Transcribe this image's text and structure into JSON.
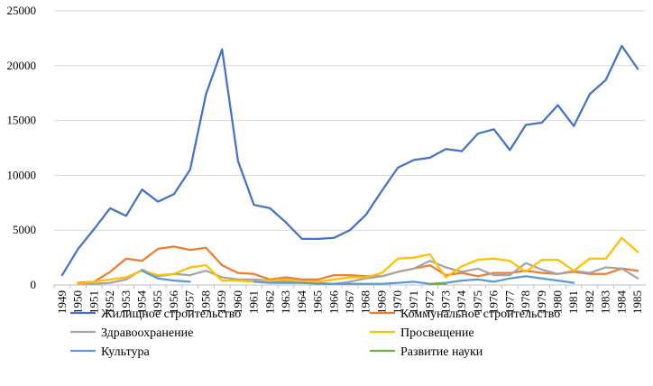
{
  "chart_data": {
    "type": "line",
    "title": "",
    "xlabel": "",
    "ylabel": "",
    "ylim": [
      0,
      25000
    ],
    "yticks": [
      "0",
      "5000",
      "10000",
      "15000",
      "20000",
      "25000"
    ],
    "grid": "horizontal",
    "legend_position": "bottom",
    "categories": [
      "1949",
      "1950",
      "1951",
      "1952",
      "1953",
      "1954",
      "1955",
      "1956",
      "1957",
      "1958",
      "1959",
      "1960",
      "1961",
      "1962",
      "1963",
      "1964",
      "1965",
      "1966",
      "1967",
      "1968",
      "1969",
      "1970",
      "1971",
      "1972",
      "1973",
      "1974",
      "1975",
      "1976",
      "1977",
      "1978",
      "1979",
      "1980",
      "1981",
      "1982",
      "1983",
      "1984",
      "1985"
    ],
    "series": [
      {
        "name": "Жилищное строительство",
        "color": "#4472c4",
        "values": [
          900,
          3300,
          5100,
          7000,
          6300,
          8700,
          7600,
          8300,
          10500,
          17400,
          21500,
          11300,
          7300,
          7000,
          5700,
          4200,
          4200,
          4300,
          5000,
          6400,
          8600,
          10700,
          11400,
          11600,
          12400,
          12200,
          13800,
          14200,
          12300,
          14600,
          14800,
          16400,
          14500,
          17400,
          18700,
          21800,
          19700
        ]
      },
      {
        "name": "Коммунальное строительство",
        "color": "#ed7d31",
        "values": [
          null,
          200,
          300,
          1200,
          2400,
          2200,
          3300,
          3500,
          3200,
          3400,
          1800,
          1100,
          1000,
          500,
          700,
          500,
          500,
          900,
          900,
          800,
          800,
          1200,
          1500,
          1800,
          900,
          1100,
          800,
          1100,
          1100,
          1300,
          1100,
          1000,
          1200,
          1000,
          1000,
          1500,
          1300
        ]
      },
      {
        "name": "Здравоохранение",
        "color": "#a5a5a5",
        "values": [
          null,
          100,
          100,
          200,
          500,
          1400,
          800,
          1000,
          900,
          1300,
          700,
          500,
          500,
          400,
          300,
          200,
          200,
          100,
          300,
          600,
          800,
          1200,
          1500,
          2200,
          1600,
          1200,
          1500,
          900,
          900,
          2000,
          1400,
          1000,
          1300,
          1100,
          1600,
          1500,
          600
        ]
      },
      {
        "name": "Просвещение",
        "color": "#ffc000",
        "values": [
          null,
          100,
          300,
          500,
          700,
          1300,
          900,
          1000,
          1600,
          1800,
          400,
          400,
          300,
          400,
          500,
          300,
          300,
          500,
          700,
          700,
          1100,
          2400,
          2500,
          2800,
          700,
          1700,
          2300,
          2400,
          2200,
          1200,
          2300,
          2300,
          1300,
          2400,
          2400,
          4300,
          3000
        ]
      },
      {
        "name": "Культура",
        "color": "#5b9bd5",
        "values": [
          null,
          null,
          null,
          null,
          null,
          1300,
          600,
          400,
          300,
          null,
          null,
          null,
          300,
          200,
          200,
          200,
          100,
          100,
          100,
          100,
          100,
          200,
          300,
          100,
          200,
          400,
          500,
          300,
          600,
          800,
          600,
          400,
          200,
          null,
          null,
          null,
          null
        ]
      },
      {
        "name": "Развитие науки",
        "color": "#70ad47",
        "values": [
          null,
          null,
          null,
          null,
          null,
          null,
          null,
          null,
          null,
          null,
          null,
          null,
          null,
          null,
          null,
          null,
          null,
          null,
          null,
          null,
          null,
          null,
          null,
          100,
          100,
          null,
          null,
          null,
          null,
          null,
          null,
          null,
          null,
          null,
          null,
          null,
          null
        ]
      }
    ]
  }
}
